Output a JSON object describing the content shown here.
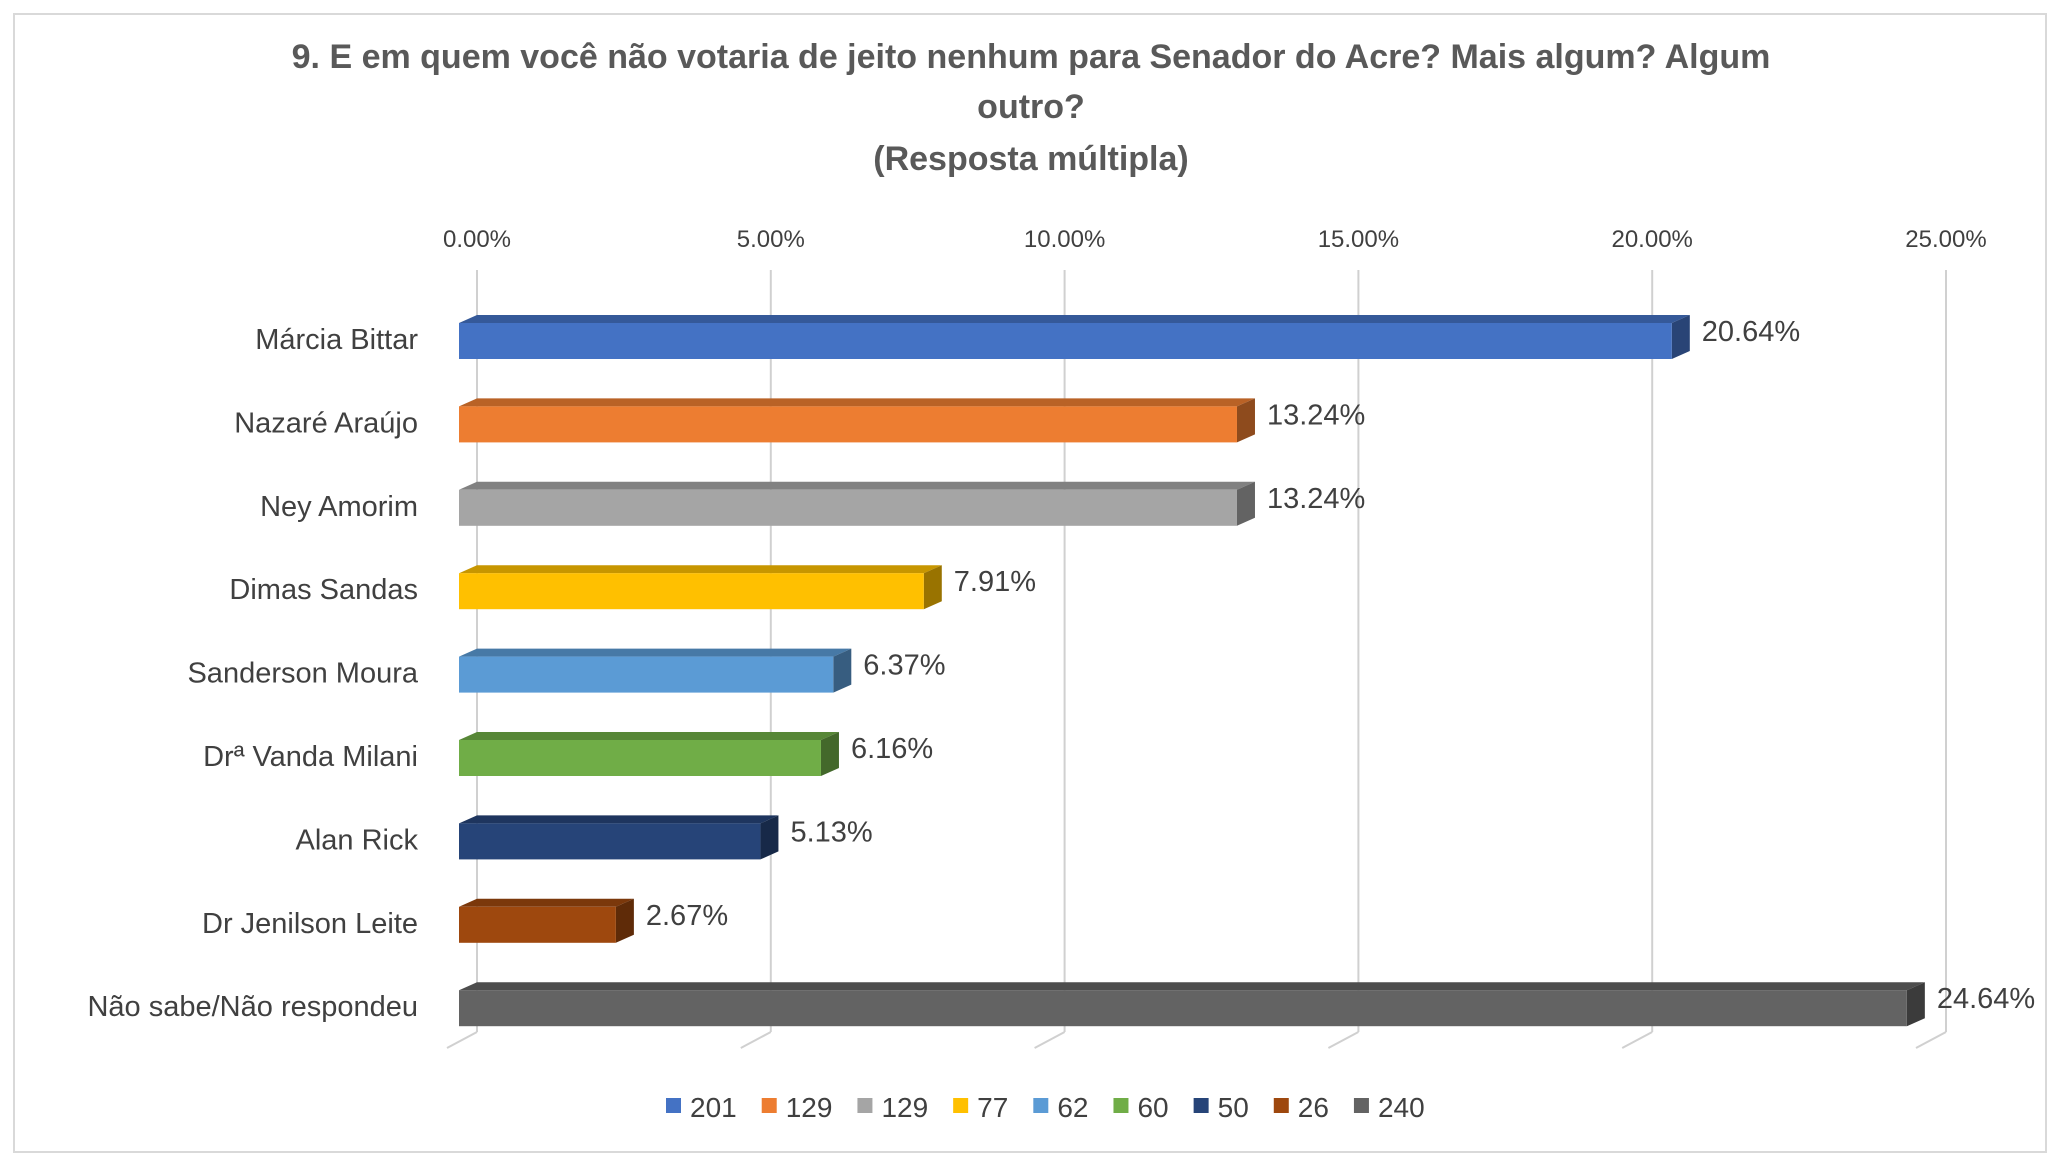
{
  "chart_data": {
    "type": "bar",
    "orientation": "horizontal",
    "style": "3d",
    "title_lines": [
      "9. E em quem você não votaria de jeito nenhum para Senador do Acre? Mais algum? Algum",
      "outro?",
      "(Resposta múltipla)"
    ],
    "categories": [
      "Márcia Bittar",
      "Nazaré Araújo",
      "Ney Amorim",
      "Dimas Sandas",
      "Sanderson Moura",
      "Drª Vanda Milani",
      "Alan Rick",
      "Dr Jenilson Leite",
      "Não sabe/Não respondeu"
    ],
    "values": [
      20.64,
      13.24,
      13.24,
      7.91,
      6.37,
      6.16,
      5.13,
      2.67,
      24.64
    ],
    "data_labels": [
      "20.64%",
      "13.24%",
      "13.24%",
      "7.91%",
      "6.37%",
      "6.16%",
      "5.13%",
      "2.67%",
      "24.64%"
    ],
    "colors": [
      "#4472C4",
      "#ED7D31",
      "#A5A5A5",
      "#FFC000",
      "#5B9BD5",
      "#70AD47",
      "#264478",
      "#9E480E",
      "#636363"
    ],
    "xlim": [
      0,
      25
    ],
    "x_ticks": [
      "0.00%",
      "5.00%",
      "10.00%",
      "15.00%",
      "20.00%",
      "25.00%"
    ],
    "x_axis_position": "top",
    "grid": true,
    "legend_position": "bottom",
    "legend": [
      "201",
      "129",
      "129",
      "77",
      "62",
      "60",
      "50",
      "26",
      "240"
    ]
  }
}
